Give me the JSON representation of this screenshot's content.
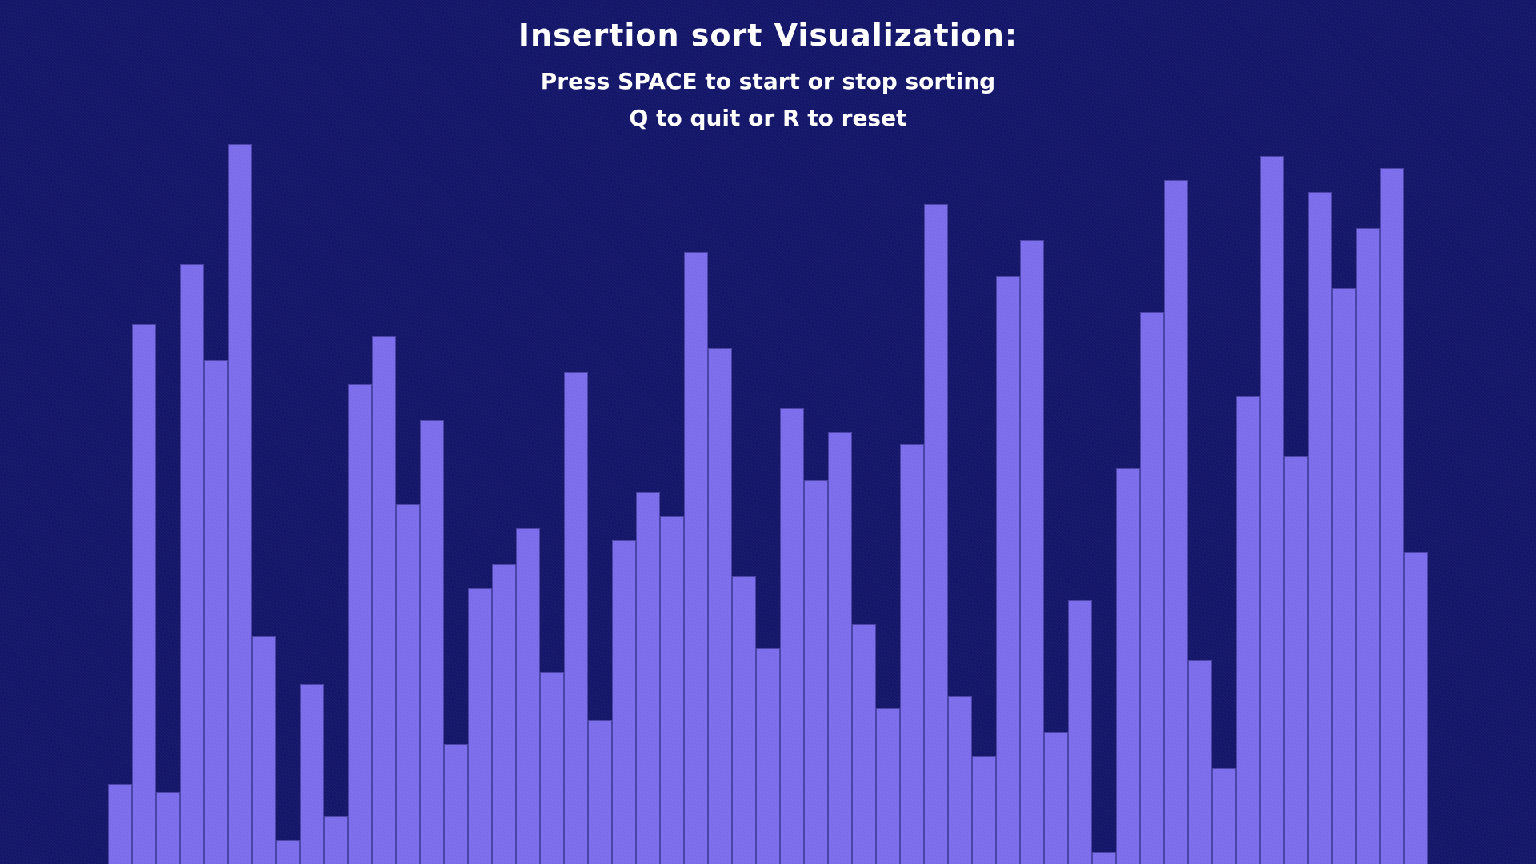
{
  "header": {
    "title": "Insertion sort Visualization:",
    "instruction_start": "Press SPACE to start or stop sorting",
    "instruction_quit": "Q to quit or R to reset"
  },
  "colors": {
    "background": "#14166b",
    "bar_fill": "#7b6cec",
    "bar_border": "#4c45a8",
    "text": "#ffffff"
  },
  "array": {
    "values": [
      100,
      675,
      90,
      750,
      630,
      900,
      285,
      30,
      225,
      60,
      600,
      660,
      450,
      555,
      150,
      345,
      375,
      420,
      240,
      615,
      180,
      405,
      465,
      435,
      765,
      645,
      360,
      270,
      570,
      480,
      540,
      300,
      195,
      525,
      825,
      210,
      135,
      735,
      780,
      165,
      330,
      15,
      495,
      690,
      855,
      255,
      120,
      585,
      885,
      510,
      840,
      720,
      795,
      870,
      390
    ]
  }
}
